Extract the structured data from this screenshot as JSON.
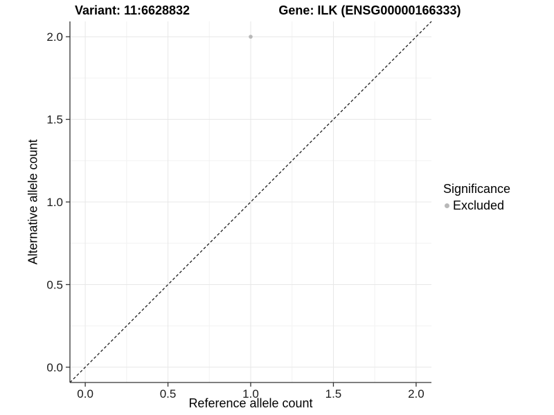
{
  "chart_data": {
    "type": "scatter",
    "title_left": "Variant: 11:6628832",
    "title_right": "Gene: ILK (ENSG00000166333)",
    "xlabel": "Reference allele count",
    "ylabel": "Alternative allele count",
    "xlim": [
      -0.0925,
      2.0925
    ],
    "ylim": [
      -0.0925,
      2.0925
    ],
    "x_ticks": [
      0,
      0.5,
      1,
      1.5,
      2
    ],
    "x_tick_labels": [
      "0.0",
      "0.5",
      "1.0",
      "1.5",
      "2.0"
    ],
    "y_ticks": [
      0,
      0.5,
      1,
      1.5,
      2
    ],
    "y_tick_labels": [
      "0.0",
      "0.5",
      "1.0",
      "1.5",
      "2.0"
    ],
    "x_minor_ticks": [
      0.25,
      0.75,
      1.25,
      1.75
    ],
    "y_minor_ticks": [
      0.25,
      0.75,
      1.25,
      1.75
    ],
    "grid": true,
    "legend_position": "right",
    "series": [
      {
        "name": "Excluded",
        "color": "#b8b8b8",
        "points": [
          {
            "x": 1.0,
            "y": 2.0
          }
        ]
      }
    ],
    "reference_line": {
      "type": "identity",
      "style": "dashed",
      "x1": -0.0925,
      "y1": -0.0925,
      "x2": 2.0925,
      "y2": 2.0925
    },
    "colors": {
      "grid_major": "#e7e7e7",
      "grid_minor": "#f2f2f2",
      "axis": "#333333",
      "reference_line": "#1a1a1a",
      "point": "#b8b8b8",
      "text": "#1a1a1a"
    }
  },
  "legend": {
    "title": "Significance",
    "items": [
      {
        "label": "Excluded",
        "marker": "circle",
        "color": "#b8b8b8"
      }
    ]
  }
}
